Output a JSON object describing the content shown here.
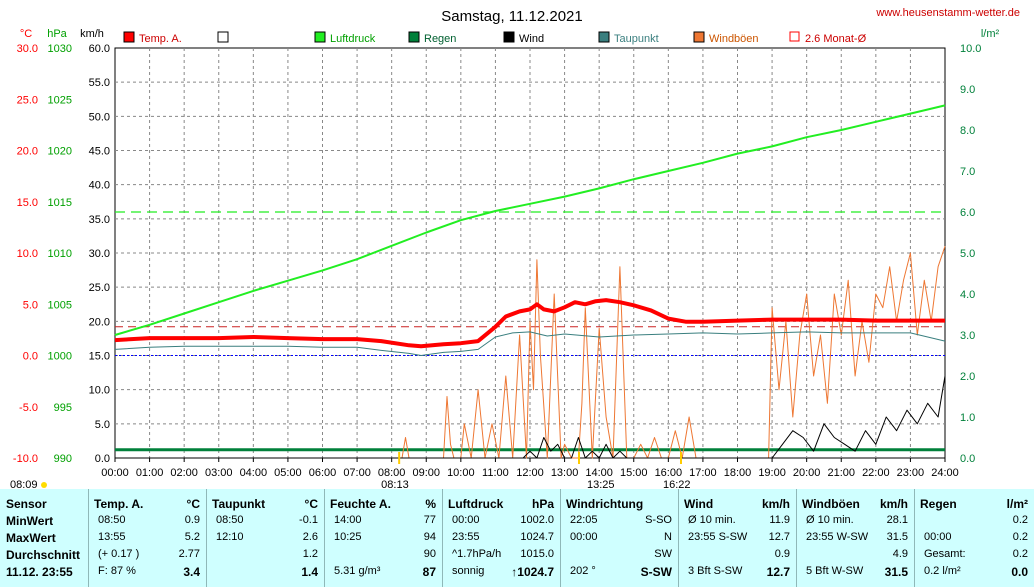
{
  "header": {
    "title": "Samstag, 11.12.2021",
    "site": "www.heusenstamm-wetter.de",
    "unit_temp": "°C",
    "unit_hpa": "hPa",
    "unit_kmh": "km/h",
    "unit_rain": "l/m²"
  },
  "legend": [
    {
      "label": "Temp. A.",
      "color": "#ff0000",
      "style": "box"
    },
    {
      "label": "",
      "color": "#ffffff",
      "style": "box"
    },
    {
      "label": "Luftdruck",
      "color": "#22ee22",
      "style": "box"
    },
    {
      "label": "Regen",
      "color": "#00803a",
      "style": "box"
    },
    {
      "label": "Wind",
      "color": "#000000",
      "style": "box"
    },
    {
      "label": "Taupunkt",
      "color": "#3a7f7f",
      "style": "box"
    },
    {
      "label": "Windböen",
      "color": "#ee7733",
      "style": "box"
    },
    {
      "label": "2.6 Monat-Ø",
      "color": "#ff0000",
      "style": "outline"
    }
  ],
  "sun_marks": {
    "sunrise_left": "08:09",
    "sunrise": "08:13",
    "noon": "13:25",
    "sunset": "16:22"
  },
  "chart_data": {
    "type": "line",
    "title": "Samstag, 11.12.2021",
    "x_ticks": [
      "00:00",
      "01:00",
      "02:00",
      "03:00",
      "04:00",
      "05:00",
      "06:00",
      "07:00",
      "08:00",
      "09:00",
      "10:00",
      "11:00",
      "12:00",
      "13:00",
      "14:00",
      "15:00",
      "16:00",
      "17:00",
      "18:00",
      "19:00",
      "20:00",
      "21:00",
      "22:00",
      "23:00",
      "24:00"
    ],
    "axes": {
      "temp": {
        "unit": "°C",
        "ticks": [
          "30.0",
          "25.0",
          "20.0",
          "15.0",
          "10.0",
          "5.0",
          "0.0",
          "-5.0",
          "-10.0"
        ],
        "range": [
          -10,
          30
        ]
      },
      "pressure": {
        "unit": "hPa",
        "ticks": [
          "1030",
          "1025",
          "1020",
          "1015",
          "1010",
          "1005",
          "1000",
          "995",
          "990"
        ],
        "range": [
          990,
          1030
        ]
      },
      "wind": {
        "unit": "km/h",
        "ticks": [
          "60.0",
          "55.0",
          "50.0",
          "45.0",
          "40.0",
          "35.0",
          "30.0",
          "25.0",
          "20.0",
          "15.0",
          "10.0",
          "5.0",
          "0.0"
        ],
        "range": [
          0,
          60
        ]
      },
      "rain": {
        "unit": "l/m²",
        "ticks": [
          "10.0",
          "9.0",
          "8.0",
          "7.0",
          "6.0",
          "5.0",
          "4.0",
          "3.0",
          "2.0",
          "1.0",
          "0.0"
        ],
        "range": [
          0,
          10
        ]
      }
    },
    "grid": true,
    "series": [
      {
        "name": "Temp. A.",
        "axis": "temp",
        "color": "#ff0000",
        "width": 4,
        "x": [
          0,
          1,
          2,
          3,
          4,
          5,
          6,
          7,
          7.7,
          8.5,
          8.85,
          9.5,
          10,
          10.5,
          11,
          11.3,
          11.7,
          12,
          12.2,
          12.4,
          12.7,
          13,
          13.3,
          13.6,
          13.9,
          14.2,
          14.6,
          15,
          15.5,
          16,
          16.5,
          17,
          18,
          19,
          20,
          21,
          22,
          23,
          24
        ],
        "y": [
          1.5,
          1.7,
          1.7,
          1.7,
          1.8,
          1.7,
          1.6,
          1.6,
          1.4,
          1.0,
          0.9,
          1.1,
          1.2,
          1.4,
          2.8,
          3.8,
          4.3,
          4.5,
          5.0,
          4.5,
          4.3,
          4.7,
          5.2,
          5.0,
          5.3,
          5.4,
          5.2,
          4.9,
          4.4,
          3.6,
          3.3,
          3.3,
          3.4,
          3.5,
          3.5,
          3.5,
          3.4,
          3.4,
          3.4
        ]
      },
      {
        "name": "Taupunkt",
        "axis": "temp",
        "color": "#3a7f7f",
        "width": 1,
        "x": [
          0,
          1,
          2,
          3,
          4,
          5,
          6,
          7,
          7.7,
          8.5,
          8.85,
          9.5,
          10,
          10.5,
          11,
          11.5,
          12,
          12.5,
          13,
          14,
          15,
          16,
          17,
          18,
          19,
          20,
          21,
          22,
          23,
          24
        ],
        "y": [
          0.6,
          0.8,
          0.9,
          0.9,
          0.9,
          0.9,
          0.8,
          0.8,
          0.5,
          0.2,
          0.0,
          0.3,
          0.4,
          0.6,
          1.8,
          2.2,
          2.3,
          1.9,
          2.1,
          1.8,
          2.0,
          2.1,
          2.2,
          2.1,
          2.2,
          2.3,
          2.2,
          2.2,
          2.2,
          1.4
        ]
      },
      {
        "name": "Luftdruck",
        "axis": "pressure",
        "color": "#22ee22",
        "width": 2,
        "x": [
          0,
          1,
          2,
          3,
          4,
          5,
          6,
          7,
          8,
          9,
          10,
          11,
          12,
          13,
          14,
          15,
          16,
          17,
          18,
          19,
          20,
          21,
          22,
          23,
          24
        ],
        "y": [
          1002.0,
          1003.0,
          1004.1,
          1005.2,
          1006.3,
          1007.3,
          1008.3,
          1009.4,
          1010.7,
          1012.0,
          1013.2,
          1014.1,
          1014.8,
          1015.5,
          1016.3,
          1017.2,
          1018.0,
          1018.8,
          1019.7,
          1020.4,
          1021.3,
          1022.0,
          1022.8,
          1023.6,
          1024.4
        ]
      },
      {
        "name": "2.6 Monat-Ø",
        "axis": "temp",
        "color": "#cc2222",
        "width": 1,
        "dash": true,
        "x": [
          0,
          24
        ],
        "y": [
          2.8,
          2.8
        ]
      },
      {
        "name": "Windböen",
        "axis": "wind",
        "color": "#ee7733",
        "width": 1,
        "x": [
          0,
          8.3,
          8.4,
          8.5,
          9.5,
          9.6,
          9.7,
          9.8,
          10.0,
          10.1,
          10.3,
          10.5,
          10.7,
          10.9,
          11.1,
          11.3,
          11.5,
          11.7,
          11.9,
          12.0,
          12.1,
          12.2,
          12.3,
          12.5,
          12.7,
          12.9,
          13.0,
          13.2,
          13.4,
          13.5,
          13.6,
          13.8,
          14.0,
          14.2,
          14.4,
          14.6,
          14.8,
          15.0,
          15.2,
          15.4,
          15.6,
          15.8,
          16.0,
          16.2,
          16.4,
          16.6,
          16.8,
          17.0,
          18.9,
          19.0,
          19.2,
          19.4,
          19.6,
          19.8,
          20.0,
          20.2,
          20.4,
          20.6,
          20.8,
          21.0,
          21.2,
          21.4,
          21.6,
          21.8,
          22.0,
          22.2,
          22.4,
          22.6,
          22.8,
          23.0,
          23.2,
          23.4,
          23.6,
          23.8,
          24.0
        ],
        "y": [
          0,
          0,
          3,
          0,
          0,
          9,
          2,
          0,
          0,
          5,
          0,
          10,
          0,
          5,
          0,
          12,
          0,
          18,
          0,
          20,
          10,
          29,
          15,
          0,
          24,
          0,
          2,
          0,
          0,
          8,
          22,
          0,
          19,
          6,
          0,
          28,
          0,
          0,
          2,
          0,
          3,
          0,
          0,
          4,
          0,
          6,
          0,
          0,
          0,
          22,
          10,
          20,
          6,
          18,
          24,
          12,
          18,
          8,
          24,
          18,
          26,
          12,
          20,
          14,
          24,
          22,
          28,
          20,
          26,
          30,
          18,
          26,
          20,
          28,
          31
        ]
      },
      {
        "name": "Wind",
        "axis": "wind",
        "color": "#000000",
        "width": 1,
        "x": [
          0,
          11.8,
          12.0,
          12.2,
          12.4,
          12.6,
          12.8,
          13.0,
          13.2,
          13.4,
          13.6,
          13.8,
          14.0,
          14.2,
          14.4,
          14.6,
          14.8,
          15.0,
          16.0,
          19.0,
          19.3,
          19.6,
          19.9,
          20.2,
          20.5,
          20.8,
          21.1,
          21.4,
          21.7,
          22.0,
          22.3,
          22.6,
          22.9,
          23.2,
          23.5,
          23.8,
          24.0
        ],
        "y": [
          0,
          0,
          1,
          0,
          3,
          1,
          2,
          0,
          0,
          3,
          0,
          1,
          0,
          2,
          0,
          1,
          0,
          0,
          0,
          0,
          2,
          4,
          3,
          1,
          5,
          3,
          2,
          1,
          4,
          2,
          6,
          4,
          7,
          5,
          8,
          6,
          12
        ]
      },
      {
        "name": "Regen",
        "axis": "rain",
        "color": "#00803a",
        "width": 3,
        "x": [
          0,
          24
        ],
        "y": [
          0.2,
          0.2
        ]
      },
      {
        "name": "Zero line",
        "axis": "temp",
        "color": "#0000ff",
        "width": 1,
        "dot": true,
        "x": [
          0,
          24
        ],
        "y": [
          0,
          0
        ]
      }
    ],
    "reference_lines": [
      {
        "axis": "rain",
        "value": 6.0,
        "color": "#22ee22",
        "dash": true
      }
    ]
  },
  "table": {
    "sensor": {
      "title": "Sensor",
      "rows": [
        "MinWert",
        "MaxWert",
        "Durchschnitt",
        "11.12. 23:55"
      ]
    },
    "temp": {
      "title": "Temp. A.",
      "unit": "°C",
      "rows": [
        [
          "08:50",
          "0.9"
        ],
        [
          "13:55",
          "5.2"
        ],
        [
          "(+ 0.17 )",
          "2.77"
        ],
        [
          "F: 87 %",
          "3.4"
        ]
      ]
    },
    "dew": {
      "title": "Taupunkt",
      "unit": "°C",
      "rows": [
        [
          "08:50",
          "-0.1"
        ],
        [
          "12:10",
          "2.6"
        ],
        [
          "",
          "1.2"
        ],
        [
          "",
          "1.4"
        ]
      ]
    },
    "humidity": {
      "title": "Feuchte A.",
      "unit": "%",
      "rows": [
        [
          "14:00",
          "77"
        ],
        [
          "10:25",
          "94"
        ],
        [
          "",
          "90"
        ],
        [
          "5.31 g/m³",
          "87"
        ]
      ]
    },
    "pressure": {
      "title": "Luftdruck",
      "unit": "hPa",
      "rows": [
        [
          "00:00",
          "1002.0"
        ],
        [
          "23:55",
          "1024.7"
        ],
        [
          "^1.7hPa/h",
          "1015.0"
        ],
        [
          "sonnig",
          "↑1024.7"
        ]
      ]
    },
    "wind_dir": {
      "title": "Windrichtung",
      "rows": [
        [
          "22:05",
          "S-SO"
        ],
        [
          "00:00",
          "N"
        ],
        [
          "",
          "SW"
        ],
        [
          "202 °",
          "S-SW"
        ]
      ]
    },
    "wind": {
      "title": "Wind",
      "unit": "km/h",
      "rows": [
        [
          "Ø 10 min.",
          "11.9"
        ],
        [
          "23:55  S-SW",
          "12.7"
        ],
        [
          "",
          "0.9"
        ],
        [
          "3 Bft S-SW",
          "12.7"
        ]
      ]
    },
    "gusts": {
      "title": "Windböen",
      "unit": "km/h",
      "rows": [
        [
          "Ø 10 min.",
          "28.1"
        ],
        [
          "23:55  W-SW",
          "31.5"
        ],
        [
          "",
          "4.9"
        ],
        [
          "5 Bft W-SW",
          "31.5"
        ]
      ]
    },
    "rain": {
      "title": "Regen",
      "unit": "l/m²",
      "rows": [
        [
          "",
          "0.2"
        ],
        [
          "00:00",
          "0.2"
        ],
        [
          "Gesamt:",
          "0.2"
        ],
        [
          "0.2 l/m²",
          "0.0"
        ]
      ]
    }
  }
}
